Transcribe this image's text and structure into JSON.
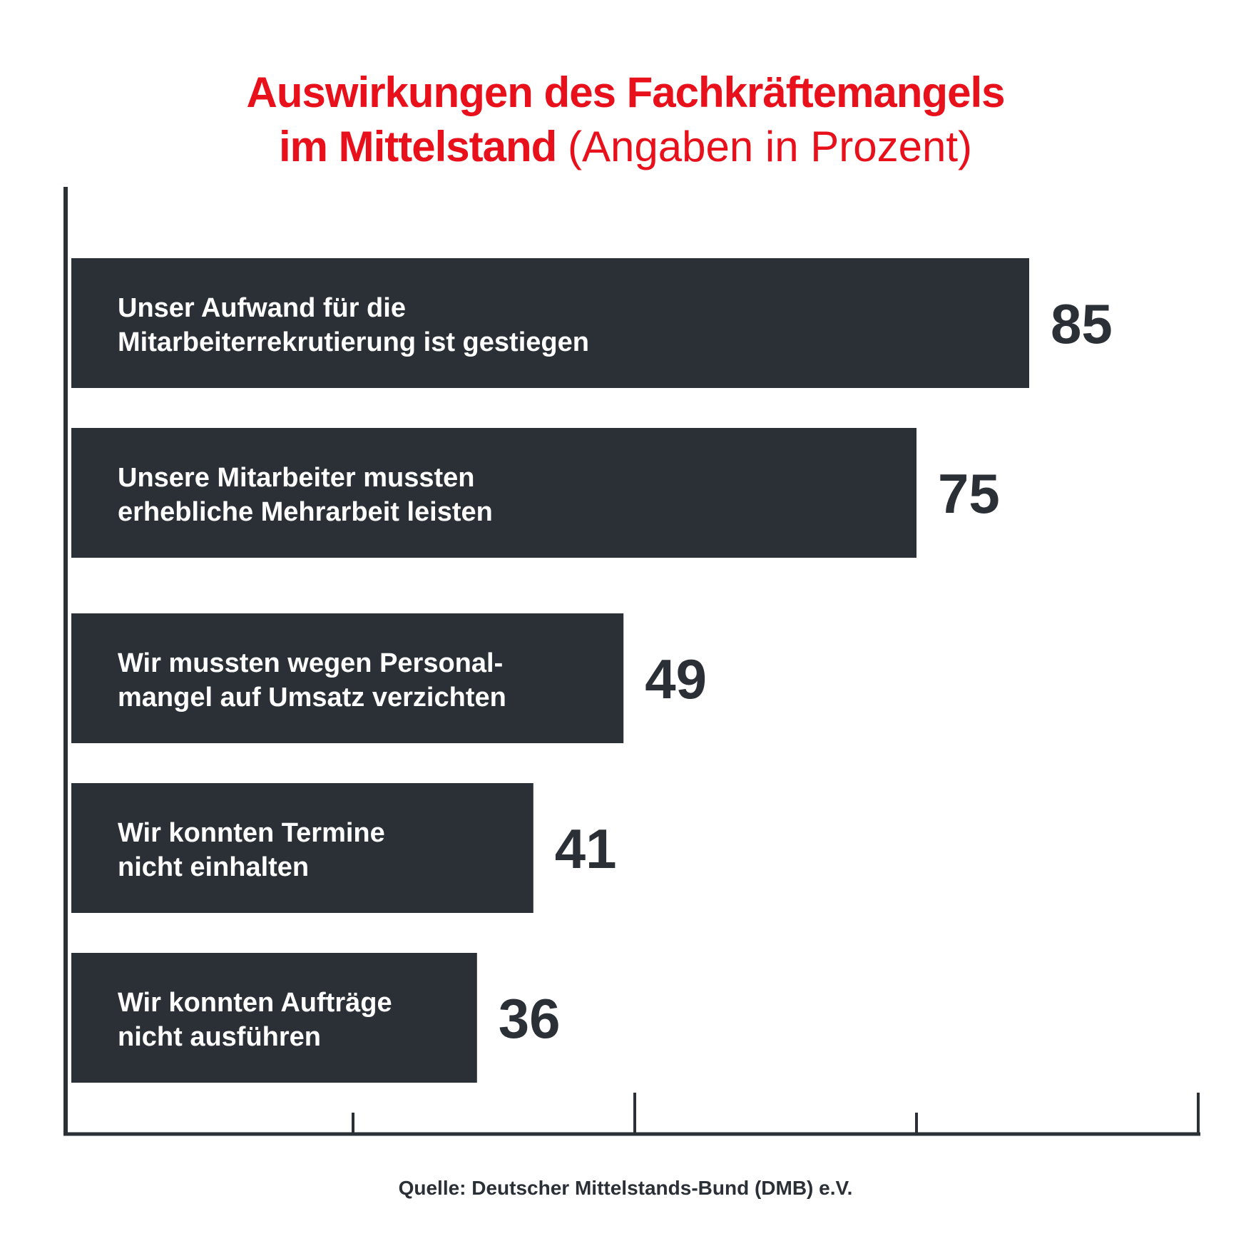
{
  "title": {
    "line1": "Auswirkungen des Fachkräftemangels",
    "line2_bold": "im Mittelstand",
    "line2_light": "(Angaben in Prozent)"
  },
  "source": "Quelle: Deutscher Mittelstands-Bund (DMB) e.V.",
  "colors": {
    "title": "#e8101b",
    "bar": "#2b3037",
    "bar_text": "#ffffff",
    "axis": "#2b3037"
  },
  "chart_data": {
    "type": "bar",
    "orientation": "horizontal",
    "title": "Auswirkungen des Fachkräftemangels im Mittelstand (Angaben in Prozent)",
    "xlim": [
      0,
      100
    ],
    "xticks": [
      0,
      25,
      50,
      75,
      100
    ],
    "categories": [
      [
        "Unser Aufwand für die",
        "Mitarbeiterrekrutierung ist gestiegen"
      ],
      [
        "Unsere Mitarbeiter mussten",
        "erhebliche Mehrarbeit leisten"
      ],
      [
        "Wir mussten wegen Personal-",
        "mangel auf Umsatz verzichten"
      ],
      [
        "Wir konnten Termine",
        "nicht einhalten"
      ],
      [
        "Wir konnten Aufträge",
        "nicht ausführen"
      ]
    ],
    "values": [
      85,
      75,
      49,
      41,
      36
    ],
    "value_labels": [
      "85",
      "75",
      "49",
      "41",
      "36"
    ],
    "grid": false
  }
}
